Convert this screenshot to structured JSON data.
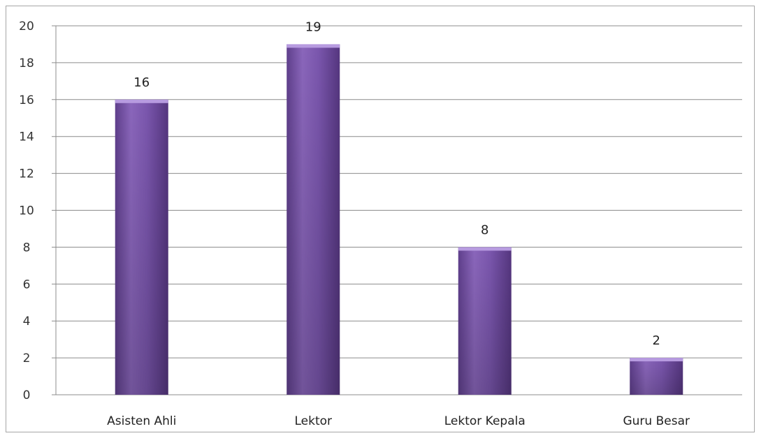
{
  "chart_data": {
    "type": "bar",
    "categories": [
      "Asisten Ahli",
      "Lektor",
      "Lektor Kepala",
      "Guru Besar"
    ],
    "values": [
      16,
      19,
      8,
      2
    ],
    "data_labels": [
      "16",
      "19",
      "8",
      "2"
    ],
    "title": "",
    "xlabel": "",
    "ylabel": "",
    "ylim": [
      0,
      20
    ],
    "y_ticks": [
      "0",
      "2",
      "4",
      "6",
      "8",
      "10",
      "12",
      "14",
      "16",
      "18",
      "20"
    ],
    "grid": true,
    "legend": "none",
    "colors": {
      "bar_light": "#8f6bbf",
      "bar_mid": "#7a55ad",
      "bar_dark": "#5a3a85",
      "bar_top": "#b79be0"
    }
  }
}
